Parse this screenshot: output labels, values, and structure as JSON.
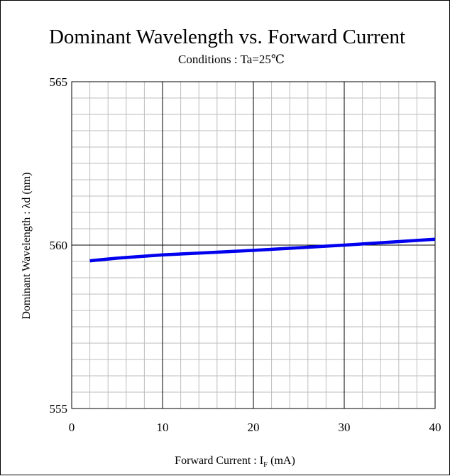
{
  "chart_data": {
    "type": "line",
    "title": "Dominant Wavelength vs.  Forward Current",
    "subtitle": "Conditions : Ta=25℃",
    "xlabel": {
      "main": "Forward Current : I",
      "sub": "F",
      "unit": " (mA)"
    },
    "ylabel": "Dominant Wavelength : λd (nm)",
    "xlim": [
      0,
      40
    ],
    "ylim": [
      555,
      565
    ],
    "x_ticks": [
      0,
      10,
      20,
      30,
      40
    ],
    "x_tick_labels": [
      "0",
      "10",
      "20",
      "30",
      "40"
    ],
    "y_ticks": [
      555,
      560,
      565
    ],
    "y_tick_labels": [
      "555",
      "560",
      "565"
    ],
    "x_minor_step": 2,
    "y_minor_step": 0.5,
    "grid": true,
    "series": [
      {
        "color": "#0000ee",
        "x": [
          2,
          5,
          10,
          15,
          20,
          25,
          30,
          35,
          40
        ],
        "y": [
          559.52,
          559.6,
          559.7,
          559.77,
          559.84,
          559.92,
          560.0,
          560.09,
          560.18
        ]
      }
    ]
  }
}
